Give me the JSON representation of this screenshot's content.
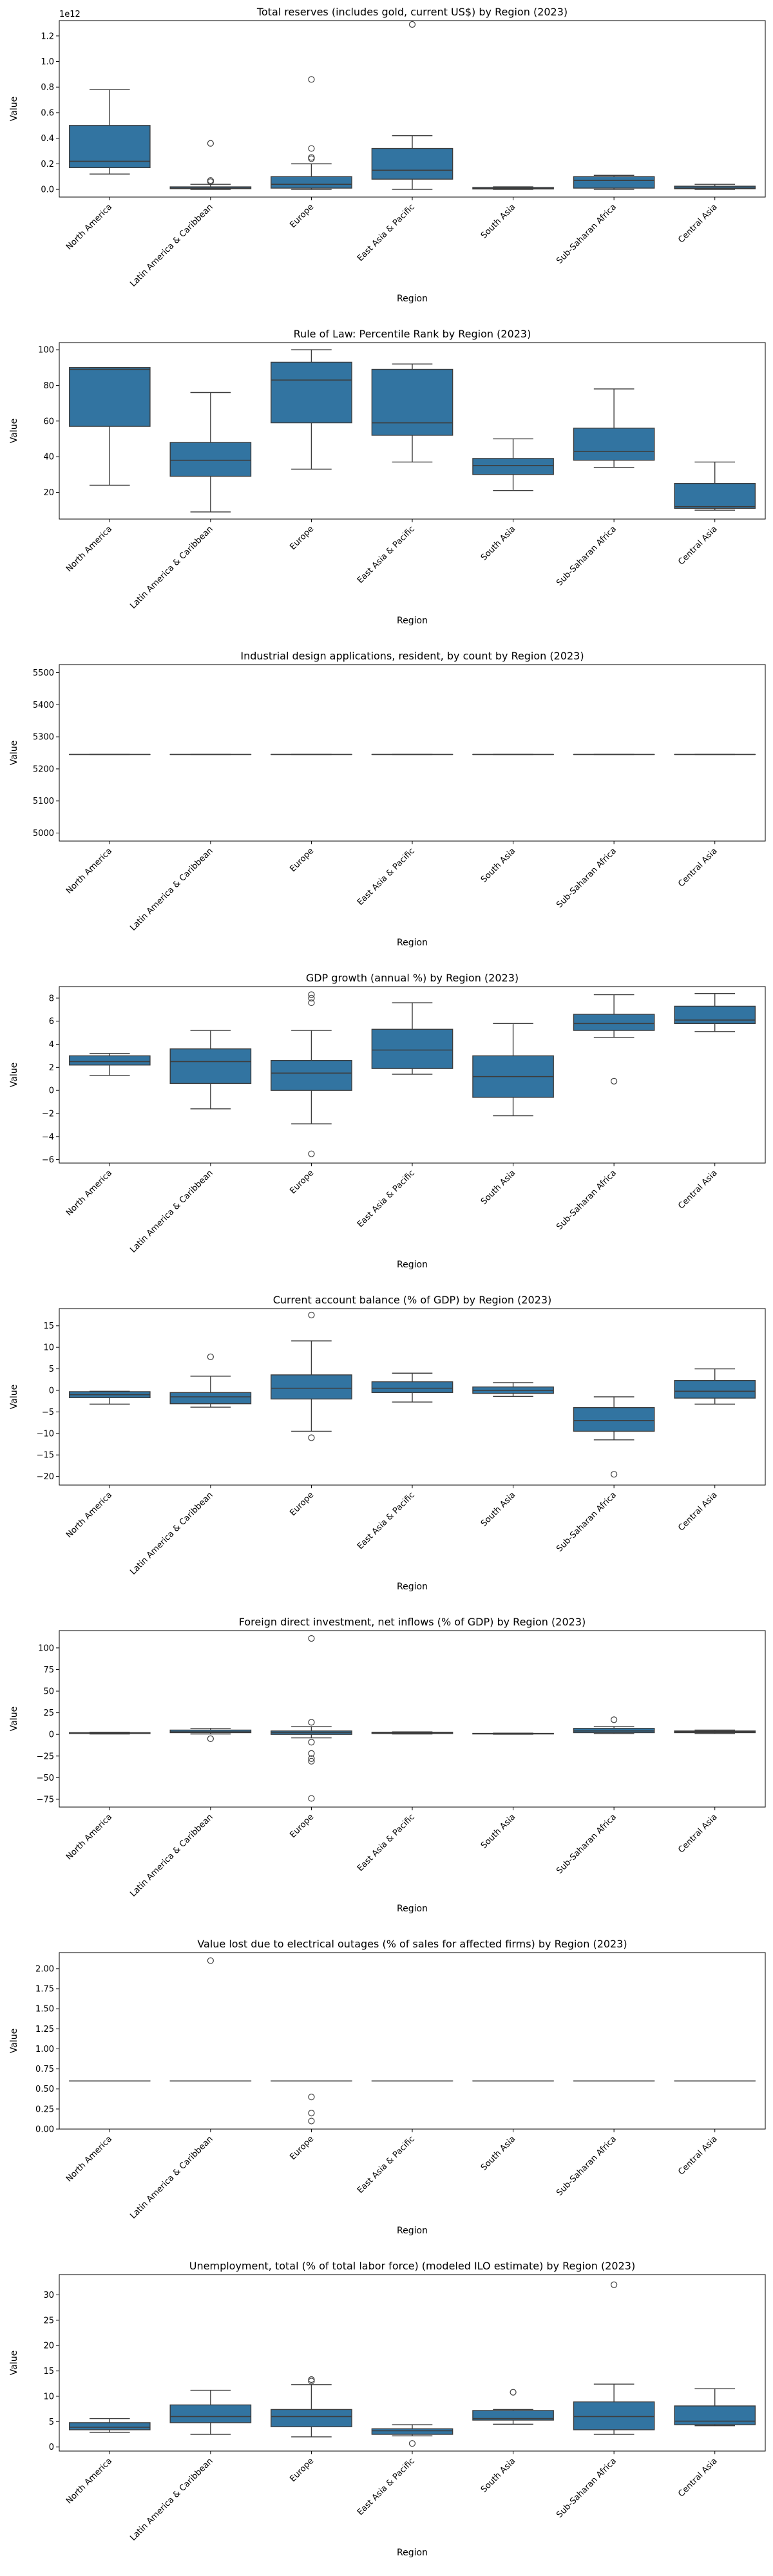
{
  "colors": {
    "box": "#3274a1",
    "line": "#3d3d3d",
    "frame": "#000000"
  },
  "chart_data": [
    {
      "type": "box",
      "title": "Total reserves (includes gold, current US$) by Region (2023)",
      "xlabel": "Region",
      "ylabel": "Value",
      "offset_label": "1e12",
      "ylim": [
        -0.06,
        1.32
      ],
      "yticks": [
        0.0,
        0.2,
        0.4,
        0.6,
        0.8,
        1.0,
        1.2
      ],
      "ytick_labels": [
        "0.0",
        "0.2",
        "0.4",
        "0.6",
        "0.8",
        "1.0",
        "1.2"
      ],
      "categories": [
        "North America",
        "Latin America & Caribbean",
        "Europe",
        "East Asia & Pacific",
        "South Asia",
        "Sub-Saharan Africa",
        "Central Asia"
      ],
      "boxes": [
        {
          "wlo": 0.12,
          "q1": 0.17,
          "med": 0.22,
          "q3": 0.5,
          "whi": 0.78,
          "fliers": []
        },
        {
          "wlo": 0.0,
          "q1": 0.005,
          "med": 0.01,
          "q3": 0.02,
          "whi": 0.04,
          "fliers": [
            0.06,
            0.07,
            0.36
          ]
        },
        {
          "wlo": 0.0,
          "q1": 0.01,
          "med": 0.04,
          "q3": 0.1,
          "whi": 0.2,
          "fliers": [
            0.24,
            0.25,
            0.32,
            0.86
          ]
        },
        {
          "wlo": 0.0,
          "q1": 0.08,
          "med": 0.15,
          "q3": 0.32,
          "whi": 0.42,
          "fliers": [
            1.29
          ]
        },
        {
          "wlo": 0.0,
          "q1": 0.003,
          "med": 0.008,
          "q3": 0.015,
          "whi": 0.02,
          "fliers": []
        },
        {
          "wlo": 0.0,
          "q1": 0.01,
          "med": 0.07,
          "q3": 0.1,
          "whi": 0.11,
          "fliers": []
        },
        {
          "wlo": 0.0,
          "q1": 0.004,
          "med": 0.01,
          "q3": 0.025,
          "whi": 0.04,
          "fliers": []
        }
      ]
    },
    {
      "type": "box",
      "title": "Rule of Law: Percentile Rank by Region (2023)",
      "xlabel": "Region",
      "ylabel": "Value",
      "ylim": [
        5,
        104
      ],
      "yticks": [
        20,
        40,
        60,
        80,
        100
      ],
      "ytick_labels": [
        "20",
        "40",
        "60",
        "80",
        "100"
      ],
      "categories": [
        "North America",
        "Latin America & Caribbean",
        "Europe",
        "East Asia & Pacific",
        "South Asia",
        "Sub-Saharan Africa",
        "Central Asia"
      ],
      "boxes": [
        {
          "wlo": 24,
          "q1": 57,
          "med": 89,
          "q3": 90,
          "whi": 90,
          "fliers": []
        },
        {
          "wlo": 9,
          "q1": 29,
          "med": 38,
          "q3": 48,
          "whi": 76,
          "fliers": []
        },
        {
          "wlo": 33,
          "q1": 59,
          "med": 83,
          "q3": 93,
          "whi": 100,
          "fliers": []
        },
        {
          "wlo": 37,
          "q1": 52,
          "med": 59,
          "q3": 89,
          "whi": 92,
          "fliers": []
        },
        {
          "wlo": 21,
          "q1": 30,
          "med": 35,
          "q3": 39,
          "whi": 50,
          "fliers": []
        },
        {
          "wlo": 34,
          "q1": 38,
          "med": 43,
          "q3": 56,
          "whi": 78,
          "fliers": []
        },
        {
          "wlo": 10,
          "q1": 11,
          "med": 12,
          "q3": 25,
          "whi": 37,
          "fliers": []
        }
      ]
    },
    {
      "type": "box",
      "title": "Industrial design applications, resident, by count by Region (2023)",
      "xlabel": "Region",
      "ylabel": "Value",
      "ylim": [
        4975,
        5525
      ],
      "yticks": [
        5000,
        5100,
        5200,
        5300,
        5400,
        5500
      ],
      "ytick_labels": [
        "5000",
        "5100",
        "5200",
        "5300",
        "5400",
        "5500"
      ],
      "categories": [
        "North America",
        "Latin America & Caribbean",
        "Europe",
        "East Asia & Pacific",
        "South Asia",
        "Sub-Saharan Africa",
        "Central Asia"
      ],
      "boxes": [
        {
          "wlo": 5245,
          "q1": 5245,
          "med": 5245,
          "q3": 5245,
          "whi": 5245,
          "fliers": []
        },
        {
          "wlo": 5245,
          "q1": 5245,
          "med": 5245,
          "q3": 5245,
          "whi": 5245,
          "fliers": []
        },
        {
          "wlo": 5245,
          "q1": 5245,
          "med": 5245,
          "q3": 5245,
          "whi": 5245,
          "fliers": []
        },
        {
          "wlo": 5245,
          "q1": 5245,
          "med": 5245,
          "q3": 5245,
          "whi": 5245,
          "fliers": []
        },
        {
          "wlo": 5245,
          "q1": 5245,
          "med": 5245,
          "q3": 5245,
          "whi": 5245,
          "fliers": []
        },
        {
          "wlo": 5245,
          "q1": 5245,
          "med": 5245,
          "q3": 5245,
          "whi": 5245,
          "fliers": []
        },
        {
          "wlo": 5245,
          "q1": 5245,
          "med": 5245,
          "q3": 5245,
          "whi": 5245,
          "fliers": []
        }
      ]
    },
    {
      "type": "box",
      "title": "GDP growth (annual %) by Region (2023)",
      "xlabel": "Region",
      "ylabel": "Value",
      "ylim": [
        -6.3,
        9.0
      ],
      "yticks": [
        -6,
        -4,
        -2,
        0,
        2,
        4,
        6,
        8
      ],
      "ytick_labels": [
        "−6",
        "−4",
        "−2",
        "0",
        "2",
        "4",
        "6",
        "8"
      ],
      "categories": [
        "North America",
        "Latin America & Caribbean",
        "Europe",
        "East Asia & Pacific",
        "South Asia",
        "Sub-Saharan Africa",
        "Central Asia"
      ],
      "boxes": [
        {
          "wlo": 1.3,
          "q1": 2.2,
          "med": 2.5,
          "q3": 3.0,
          "whi": 3.2,
          "fliers": []
        },
        {
          "wlo": -1.6,
          "q1": 0.6,
          "med": 2.5,
          "q3": 3.6,
          "whi": 5.2,
          "fliers": []
        },
        {
          "wlo": -2.9,
          "q1": 0.0,
          "med": 1.5,
          "q3": 2.6,
          "whi": 5.2,
          "fliers": [
            7.6,
            8.0,
            8.3,
            -5.5
          ]
        },
        {
          "wlo": 1.4,
          "q1": 1.9,
          "med": 3.5,
          "q3": 5.3,
          "whi": 7.6,
          "fliers": []
        },
        {
          "wlo": -2.2,
          "q1": -0.6,
          "med": 1.2,
          "q3": 3.0,
          "whi": 5.8,
          "fliers": []
        },
        {
          "wlo": 4.6,
          "q1": 5.2,
          "med": 5.8,
          "q3": 6.6,
          "whi": 8.3,
          "fliers": [
            0.8
          ]
        },
        {
          "wlo": 5.1,
          "q1": 5.8,
          "med": 6.1,
          "q3": 7.3,
          "whi": 8.4,
          "fliers": []
        }
      ]
    },
    {
      "type": "box",
      "title": "Current account balance (% of GDP) by Region (2023)",
      "xlabel": "Region",
      "ylabel": "Value",
      "ylim": [
        -22,
        19
      ],
      "yticks": [
        -20,
        -15,
        -10,
        -5,
        0,
        5,
        10,
        15
      ],
      "ytick_labels": [
        "−20",
        "−15",
        "−10",
        "−5",
        "0",
        "5",
        "10",
        "15"
      ],
      "categories": [
        "North America",
        "Latin America & Caribbean",
        "Europe",
        "East Asia & Pacific",
        "South Asia",
        "Sub-Saharan Africa",
        "Central Asia"
      ],
      "boxes": [
        {
          "wlo": -3.2,
          "q1": -1.7,
          "med": -1.0,
          "q3": -0.3,
          "whi": -0.2,
          "fliers": []
        },
        {
          "wlo": -3.9,
          "q1": -3.1,
          "med": -1.5,
          "q3": -0.5,
          "whi": 3.3,
          "fliers": [
            7.8
          ]
        },
        {
          "wlo": -9.5,
          "q1": -2.0,
          "med": 0.5,
          "q3": 3.6,
          "whi": 11.5,
          "fliers": [
            17.5,
            -11.0
          ]
        },
        {
          "wlo": -2.7,
          "q1": -0.5,
          "med": 0.5,
          "q3": 2.0,
          "whi": 4.0,
          "fliers": []
        },
        {
          "wlo": -1.4,
          "q1": -0.7,
          "med": 0.0,
          "q3": 0.8,
          "whi": 1.8,
          "fliers": []
        },
        {
          "wlo": -11.5,
          "q1": -9.5,
          "med": -7.0,
          "q3": -4.0,
          "whi": -1.5,
          "fliers": [
            -19.5
          ]
        },
        {
          "wlo": -3.2,
          "q1": -1.8,
          "med": -0.2,
          "q3": 2.3,
          "whi": 5.0,
          "fliers": []
        }
      ]
    },
    {
      "type": "box",
      "title": "Foreign direct investment, net inflows (% of GDP) by Region (2023)",
      "xlabel": "Region",
      "ylabel": "Value",
      "ylim": [
        -84,
        120
      ],
      "yticks": [
        -75,
        -50,
        -25,
        0,
        25,
        50,
        75,
        100
      ],
      "ytick_labels": [
        "−75",
        "−50",
        "−25",
        "0",
        "25",
        "50",
        "75",
        "100"
      ],
      "categories": [
        "North America",
        "Latin America & Caribbean",
        "Europe",
        "East Asia & Pacific",
        "South Asia",
        "Sub-Saharan Africa",
        "Central Asia"
      ],
      "boxes": [
        {
          "wlo": 0.5,
          "q1": 1.0,
          "med": 1.5,
          "q3": 2.0,
          "whi": 2.5,
          "fliers": []
        },
        {
          "wlo": 0.5,
          "q1": 2.0,
          "med": 3.0,
          "q3": 5.0,
          "whi": 7.0,
          "fliers": [
            -5.0
          ]
        },
        {
          "wlo": -4.0,
          "q1": 0.0,
          "med": 2.0,
          "q3": 4.0,
          "whi": 9.0,
          "fliers": [
            111,
            14,
            -9,
            -22,
            -28,
            -31,
            -74
          ]
        },
        {
          "wlo": 0.5,
          "q1": 1.0,
          "med": 1.5,
          "q3": 2.5,
          "whi": 3.0,
          "fliers": []
        },
        {
          "wlo": 0.2,
          "q1": 0.5,
          "med": 0.8,
          "q3": 1.2,
          "whi": 1.5,
          "fliers": []
        },
        {
          "wlo": 1.0,
          "q1": 2.0,
          "med": 4.0,
          "q3": 7.0,
          "whi": 9.0,
          "fliers": [
            17
          ]
        },
        {
          "wlo": 1.0,
          "q1": 2.0,
          "med": 3.0,
          "q3": 4.0,
          "whi": 5.0,
          "fliers": []
        }
      ]
    },
    {
      "type": "box",
      "title": "Value lost due to electrical outages (% of sales for affected firms) by Region (2023)",
      "xlabel": "Region",
      "ylabel": "Value",
      "ylim": [
        0.0,
        2.2
      ],
      "yticks": [
        0.0,
        0.25,
        0.5,
        0.75,
        1.0,
        1.25,
        1.5,
        1.75,
        2.0
      ],
      "ytick_labels": [
        "0.00",
        "0.25",
        "0.50",
        "0.75",
        "1.00",
        "1.25",
        "1.50",
        "1.75",
        "2.00"
      ],
      "categories": [
        "North America",
        "Latin America & Caribbean",
        "Europe",
        "East Asia & Pacific",
        "South Asia",
        "Sub-Saharan Africa",
        "Central Asia"
      ],
      "boxes": [
        {
          "wlo": 0.6,
          "q1": 0.6,
          "med": 0.6,
          "q3": 0.6,
          "whi": 0.6,
          "fliers": []
        },
        {
          "wlo": 0.6,
          "q1": 0.6,
          "med": 0.6,
          "q3": 0.6,
          "whi": 0.6,
          "fliers": [
            2.1
          ]
        },
        {
          "wlo": 0.6,
          "q1": 0.6,
          "med": 0.6,
          "q3": 0.6,
          "whi": 0.6,
          "fliers": [
            0.4,
            0.2,
            0.1
          ]
        },
        {
          "wlo": 0.6,
          "q1": 0.6,
          "med": 0.6,
          "q3": 0.6,
          "whi": 0.6,
          "fliers": []
        },
        {
          "wlo": 0.6,
          "q1": 0.6,
          "med": 0.6,
          "q3": 0.6,
          "whi": 0.6,
          "fliers": []
        },
        {
          "wlo": 0.6,
          "q1": 0.6,
          "med": 0.6,
          "q3": 0.6,
          "whi": 0.6,
          "fliers": []
        },
        {
          "wlo": 0.6,
          "q1": 0.6,
          "med": 0.6,
          "q3": 0.6,
          "whi": 0.6,
          "fliers": []
        }
      ]
    },
    {
      "type": "box",
      "title": "Unemployment, total (% of total labor force) (modeled ILO estimate) by Region (2023)",
      "xlabel": "Region",
      "ylabel": "Value",
      "ylim": [
        -0.8,
        34
      ],
      "yticks": [
        0,
        5,
        10,
        15,
        20,
        25,
        30
      ],
      "ytick_labels": [
        "0",
        "5",
        "10",
        "15",
        "20",
        "25",
        "30"
      ],
      "categories": [
        "North America",
        "Latin America & Caribbean",
        "Europe",
        "East Asia & Pacific",
        "South Asia",
        "Sub-Saharan Africa",
        "Central Asia"
      ],
      "boxes": [
        {
          "wlo": 2.9,
          "q1": 3.4,
          "med": 3.9,
          "q3": 4.8,
          "whi": 5.6,
          "fliers": []
        },
        {
          "wlo": 2.5,
          "q1": 4.8,
          "med": 6.0,
          "q3": 8.3,
          "whi": 11.2,
          "fliers": []
        },
        {
          "wlo": 2.0,
          "q1": 4.0,
          "med": 6.0,
          "q3": 7.4,
          "whi": 12.3,
          "fliers": [
            13.0,
            13.3
          ]
        },
        {
          "wlo": 2.2,
          "q1": 2.5,
          "med": 3.2,
          "q3": 3.6,
          "whi": 4.4,
          "fliers": [
            0.7
          ]
        },
        {
          "wlo": 4.5,
          "q1": 5.3,
          "med": 5.6,
          "q3": 7.2,
          "whi": 7.4,
          "fliers": [
            10.8
          ]
        },
        {
          "wlo": 2.5,
          "q1": 3.4,
          "med": 6.0,
          "q3": 8.9,
          "whi": 12.4,
          "fliers": [
            32.0
          ]
        },
        {
          "wlo": 4.2,
          "q1": 4.4,
          "med": 5.1,
          "q3": 8.1,
          "whi": 11.5,
          "fliers": []
        }
      ]
    }
  ]
}
